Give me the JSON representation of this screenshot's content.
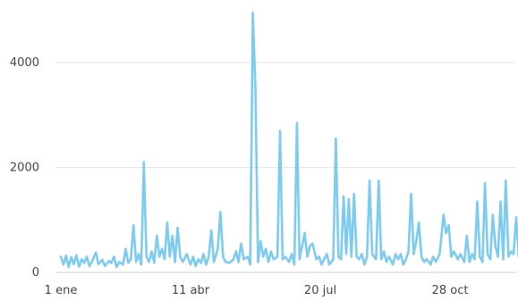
{
  "chart_data": {
    "type": "line",
    "title": "",
    "xlabel": "",
    "ylabel": "",
    "x_tick_labels": [
      "1 ene",
      "11 abr",
      "20 jul",
      "28 oct"
    ],
    "y_tick_labels": [
      "0",
      "2000",
      "4000"
    ],
    "xlim": [
      "1 ene",
      "31 dic"
    ],
    "ylim": [
      0,
      5000
    ],
    "grid": true,
    "legend": "none",
    "series": [
      {
        "color": "#7dcbf0",
        "points": [
          [
            "1 ene",
            300
          ],
          [
            "3 ene",
            150
          ],
          [
            "5 ene",
            320
          ],
          [
            "7 ene",
            100
          ],
          [
            "9 ene",
            290
          ],
          [
            "11 ene",
            160
          ],
          [
            "13 ene",
            330
          ],
          [
            "15 ene",
            110
          ],
          [
            "17 ene",
            250
          ],
          [
            "19 ene",
            180
          ],
          [
            "21 ene",
            300
          ],
          [
            "23 ene",
            120
          ],
          [
            "25 ene",
            210
          ],
          [
            "28 ene",
            380
          ],
          [
            "30 ene",
            160
          ],
          [
            "2 feb",
            240
          ],
          [
            "4 feb",
            120
          ],
          [
            "7 feb",
            220
          ],
          [
            "9 feb",
            180
          ],
          [
            "11 feb",
            300
          ],
          [
            "13 feb",
            100
          ],
          [
            "15 feb",
            200
          ],
          [
            "18 feb",
            150
          ],
          [
            "20 feb",
            450
          ],
          [
            "22 feb",
            180
          ],
          [
            "24 feb",
            250
          ],
          [
            "26 feb",
            900
          ],
          [
            "28 feb",
            200
          ],
          [
            "2 mar",
            350
          ],
          [
            "4 mar",
            150
          ],
          [
            "6 mar",
            2100
          ],
          [
            "8 mar",
            300
          ],
          [
            "10 mar",
            200
          ],
          [
            "12 mar",
            400
          ],
          [
            "14 mar",
            180
          ],
          [
            "16 mar",
            700
          ],
          [
            "18 mar",
            300
          ],
          [
            "20 mar",
            450
          ],
          [
            "22 mar",
            250
          ],
          [
            "24 mar",
            950
          ],
          [
            "26 mar",
            300
          ],
          [
            "28 mar",
            700
          ],
          [
            "30 mar",
            200
          ],
          [
            "1 abr",
            850
          ],
          [
            "3 abr",
            300
          ],
          [
            "5 abr",
            200
          ],
          [
            "8 abr",
            350
          ],
          [
            "11 abr",
            150
          ],
          [
            "13 abr",
            300
          ],
          [
            "15 abr",
            120
          ],
          [
            "17 abr",
            250
          ],
          [
            "19 abr",
            180
          ],
          [
            "21 abr",
            350
          ],
          [
            "23 abr",
            150
          ],
          [
            "25 abr",
            300
          ],
          [
            "27 abr",
            800
          ],
          [
            "29 abr",
            200
          ],
          [
            "2 may",
            450
          ],
          [
            "4 may",
            1150
          ],
          [
            "6 may",
            300
          ],
          [
            "8 may",
            200
          ],
          [
            "11 may",
            180
          ],
          [
            "14 may",
            250
          ],
          [
            "16 may",
            400
          ],
          [
            "18 may",
            200
          ],
          [
            "20 may",
            550
          ],
          [
            "22 may",
            250
          ],
          [
            "25 may",
            300
          ],
          [
            "27 may",
            150
          ],
          [
            "29 may",
            4950
          ],
          [
            "31 may",
            3500
          ],
          [
            "2 jun",
            200
          ],
          [
            "4 jun",
            600
          ],
          [
            "6 jun",
            300
          ],
          [
            "8 jun",
            450
          ],
          [
            "10 jun",
            200
          ],
          [
            "12 jun",
            400
          ],
          [
            "14 jun",
            250
          ],
          [
            "17 jun",
            300
          ],
          [
            "19 jun",
            2700
          ],
          [
            "21 jun",
            250
          ],
          [
            "23 jun",
            300
          ],
          [
            "26 jun",
            200
          ],
          [
            "28 jun",
            350
          ],
          [
            "30 jun",
            150
          ],
          [
            "2 jul",
            2850
          ],
          [
            "4 jul",
            250
          ],
          [
            "6 jul",
            500
          ],
          [
            "8 jul",
            750
          ],
          [
            "10 jul",
            300
          ],
          [
            "12 jul",
            500
          ],
          [
            "14 jul",
            550
          ],
          [
            "17 jul",
            250
          ],
          [
            "19 jul",
            300
          ],
          [
            "21 jul",
            150
          ],
          [
            "23 jul",
            250
          ],
          [
            "25 jul",
            350
          ],
          [
            "27 jul",
            150
          ],
          [
            "30 jul",
            250
          ],
          [
            "1 ago",
            2550
          ],
          [
            "3 ago",
            300
          ],
          [
            "5 ago",
            250
          ],
          [
            "7 ago",
            1450
          ],
          [
            "9 ago",
            350
          ],
          [
            "11 ago",
            1400
          ],
          [
            "13 ago",
            300
          ],
          [
            "15 ago",
            1500
          ],
          [
            "17 ago",
            300
          ],
          [
            "19 ago",
            250
          ],
          [
            "21 ago",
            350
          ],
          [
            "23 ago",
            150
          ],
          [
            "25 ago",
            300
          ],
          [
            "27 ago",
            1750
          ],
          [
            "29 ago",
            350
          ],
          [
            "1 sep",
            250
          ],
          [
            "3 sep",
            1750
          ],
          [
            "5 sep",
            250
          ],
          [
            "7 sep",
            400
          ],
          [
            "9 sep",
            200
          ],
          [
            "11 sep",
            300
          ],
          [
            "14 sep",
            150
          ],
          [
            "16 sep",
            350
          ],
          [
            "18 sep",
            250
          ],
          [
            "20 sep",
            350
          ],
          [
            "22 sep",
            150
          ],
          [
            "24 sep",
            250
          ],
          [
            "26 sep",
            400
          ],
          [
            "28 sep",
            1500
          ],
          [
            "30 sep",
            350
          ],
          [
            "2 oct",
            600
          ],
          [
            "4 oct",
            950
          ],
          [
            "6 oct",
            300
          ],
          [
            "8 oct",
            200
          ],
          [
            "10 oct",
            250
          ],
          [
            "13 oct",
            150
          ],
          [
            "15 oct",
            300
          ],
          [
            "17 oct",
            200
          ],
          [
            "20 oct",
            350
          ],
          [
            "23 oct",
            1100
          ],
          [
            "25 oct",
            750
          ],
          [
            "27 oct",
            900
          ],
          [
            "29 oct",
            300
          ],
          [
            "31 oct",
            400
          ],
          [
            "3 nov",
            250
          ],
          [
            "5 nov",
            350
          ],
          [
            "8 nov",
            200
          ],
          [
            "10 nov",
            700
          ],
          [
            "12 nov",
            200
          ],
          [
            "14 nov",
            350
          ],
          [
            "16 nov",
            250
          ],
          [
            "18 nov",
            1350
          ],
          [
            "20 nov",
            300
          ],
          [
            "22 nov",
            200
          ],
          [
            "24 nov",
            1700
          ],
          [
            "26 nov",
            350
          ],
          [
            "28 nov",
            250
          ],
          [
            "30 nov",
            1100
          ],
          [
            "2 dic",
            500
          ],
          [
            "4 dic",
            300
          ],
          [
            "6 dic",
            1350
          ],
          [
            "8 dic",
            250
          ],
          [
            "10 dic",
            1750
          ],
          [
            "12 dic",
            300
          ],
          [
            "14 dic",
            400
          ],
          [
            "16 dic",
            350
          ],
          [
            "18 dic",
            1050
          ],
          [
            "20 dic",
            300
          ],
          [
            "23 dic",
            400
          ],
          [
            "26 dic",
            300
          ],
          [
            "29 dic",
            350
          ],
          [
            "31 dic",
            250
          ]
        ]
      }
    ]
  }
}
